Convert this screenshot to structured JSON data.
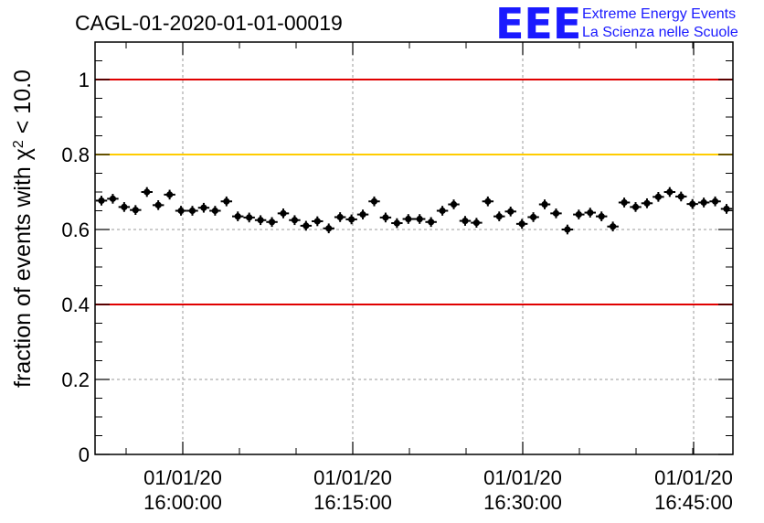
{
  "chart_data": {
    "type": "scatter",
    "title": "CAGL-01-2020-01-01-00019",
    "ylabel_main": "fraction of events with χ",
    "ylabel_sup": "2",
    "ylabel_tail": " < 10.0",
    "xlabel": "",
    "ylim": [
      0,
      1.1
    ],
    "y_ticks": [
      0,
      0.2,
      0.4,
      0.6,
      0.8,
      1
    ],
    "y_tick_labels": [
      "0",
      "0.2",
      "0.4",
      "0.6",
      "0.8",
      "1"
    ],
    "x_ticks": [
      {
        "date": "01/01/20",
        "time": "16:00:00"
      },
      {
        "date": "01/01/20",
        "time": "16:15:00"
      },
      {
        "date": "01/01/20",
        "time": "16:30:00"
      },
      {
        "date": "01/01/20",
        "time": "16:45:00"
      }
    ],
    "grid": true,
    "reference_lines": [
      {
        "y": 1.0,
        "color": "#e00000"
      },
      {
        "y": 0.8,
        "color": "#ffcc00"
      },
      {
        "y": 0.4,
        "color": "#e00000"
      }
    ],
    "points": [
      0.677,
      0.682,
      0.66,
      0.652,
      0.7,
      0.665,
      0.693,
      0.65,
      0.65,
      0.658,
      0.65,
      0.675,
      0.635,
      0.632,
      0.625,
      0.62,
      0.643,
      0.625,
      0.61,
      0.622,
      0.603,
      0.633,
      0.627,
      0.64,
      0.675,
      0.632,
      0.617,
      0.628,
      0.628,
      0.62,
      0.65,
      0.667,
      0.623,
      0.618,
      0.675,
      0.635,
      0.648,
      0.615,
      0.633,
      0.667,
      0.643,
      0.6,
      0.64,
      0.645,
      0.635,
      0.608,
      0.672,
      0.66,
      0.67,
      0.687,
      0.7,
      0.688,
      0.668,
      0.672,
      0.675,
      0.655
    ],
    "y_error": 0.013,
    "marker_color": "#000000"
  },
  "logo": {
    "mark": "EEE",
    "line1": "Extreme Energy Events",
    "line2": "La Scienza nelle Scuole",
    "color": "#1a1aff"
  }
}
